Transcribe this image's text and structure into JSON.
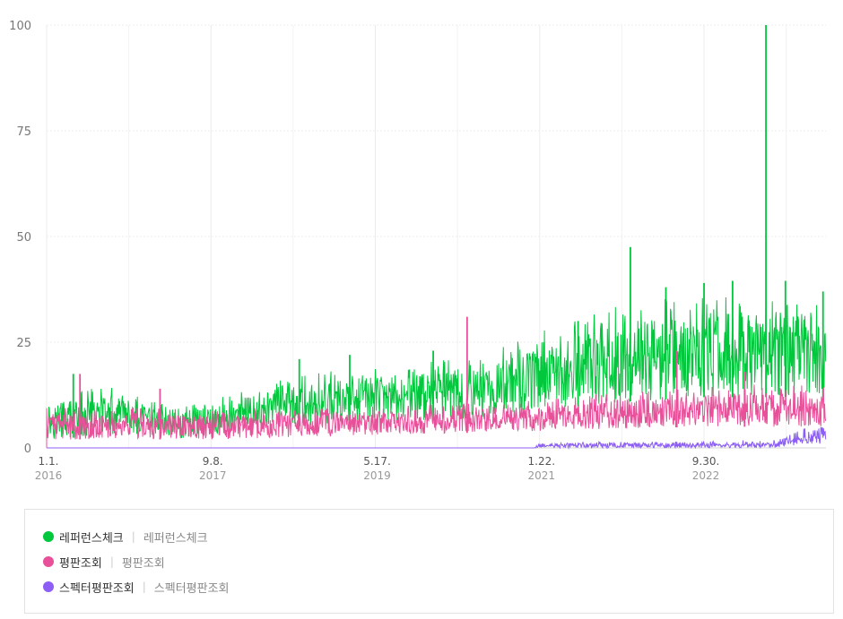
{
  "chart_data": {
    "type": "line",
    "x_start": "2016-01-01",
    "x_end": "2023-12-31",
    "ylim": [
      0,
      100
    ],
    "yticks": [
      "0",
      "25",
      "50",
      "75",
      "100"
    ],
    "xticks": [
      {
        "date": "2016-01-01",
        "label": "1.1.",
        "year": "2016"
      },
      {
        "date": "2017-09-08",
        "label": "9.8.",
        "year": "2017"
      },
      {
        "date": "2019-05-17",
        "label": "5.17.",
        "year": "2019"
      },
      {
        "date": "2021-01-22",
        "label": "1.22.",
        "year": "2021"
      },
      {
        "date": "2022-09-30",
        "label": "9.30.",
        "year": "2022"
      }
    ],
    "grid": true,
    "legend_position": "bottom",
    "series": [
      {
        "name": "레퍼런스체크",
        "keyword": "레퍼런스체크",
        "color": "#00c73c",
        "trend": [
          {
            "x": "2016-01-01",
            "low": 2,
            "high": 11
          },
          {
            "x": "2016-09-01",
            "low": 3,
            "high": 12
          },
          {
            "x": "2017-05-01",
            "low": 2,
            "high": 8
          },
          {
            "x": "2017-09-08",
            "low": 3,
            "high": 10
          },
          {
            "x": "2018-06-01",
            "low": 5,
            "high": 14
          },
          {
            "x": "2019-05-17",
            "low": 6,
            "high": 17
          },
          {
            "x": "2020-06-01",
            "low": 7,
            "high": 19
          },
          {
            "x": "2021-01-22",
            "low": 9,
            "high": 24
          },
          {
            "x": "2022-01-01",
            "low": 11,
            "high": 30
          },
          {
            "x": "2022-09-30",
            "low": 12,
            "high": 32
          },
          {
            "x": "2023-12-31",
            "low": 12,
            "high": 31
          }
        ],
        "peaks": [
          {
            "x": "2016-04-10",
            "y": 17.5
          },
          {
            "x": "2018-08-05",
            "y": 21
          },
          {
            "x": "2019-02-10",
            "y": 22
          },
          {
            "x": "2019-12-20",
            "y": 23
          },
          {
            "x": "2021-06-15",
            "y": 30
          },
          {
            "x": "2021-12-28",
            "y": 47.5
          },
          {
            "x": "2022-05-10",
            "y": 38
          },
          {
            "x": "2022-09-30",
            "y": 39
          },
          {
            "x": "2023-01-15",
            "y": 39.5
          },
          {
            "x": "2023-05-20",
            "y": 100
          },
          {
            "x": "2023-08-01",
            "y": 39.5
          },
          {
            "x": "2023-12-20",
            "y": 37
          }
        ]
      },
      {
        "name": "평판조회",
        "keyword": "평판조회",
        "color": "#e8509a",
        "trend": [
          {
            "x": "2016-01-01",
            "low": 2,
            "high": 8
          },
          {
            "x": "2017-09-08",
            "low": 2,
            "high": 8
          },
          {
            "x": "2019-05-17",
            "low": 3,
            "high": 8.5
          },
          {
            "x": "2021-01-22",
            "low": 4,
            "high": 10
          },
          {
            "x": "2022-09-30",
            "low": 5,
            "high": 13
          },
          {
            "x": "2023-12-31",
            "low": 5,
            "high": 13
          }
        ],
        "peaks": [
          {
            "x": "2016-05-05",
            "y": 17.5
          },
          {
            "x": "2017-03-01",
            "y": 14
          },
          {
            "x": "2020-04-25",
            "y": 31
          },
          {
            "x": "2022-06-20",
            "y": 23
          },
          {
            "x": "2023-03-01",
            "y": 18
          }
        ]
      },
      {
        "name": "스펙터평판조회",
        "keyword": "스펙터평판조회",
        "color": "#8c5ef5",
        "trend": [
          {
            "x": "2016-01-01",
            "low": 0,
            "high": 0
          },
          {
            "x": "2021-01-01",
            "low": 0,
            "high": 0
          },
          {
            "x": "2021-01-22",
            "low": 0,
            "high": 1
          },
          {
            "x": "2023-07-01",
            "low": 0,
            "high": 1.5
          },
          {
            "x": "2023-10-15",
            "low": 1,
            "high": 4
          },
          {
            "x": "2023-12-31",
            "low": 1,
            "high": 5
          }
        ],
        "peaks": []
      }
    ]
  }
}
